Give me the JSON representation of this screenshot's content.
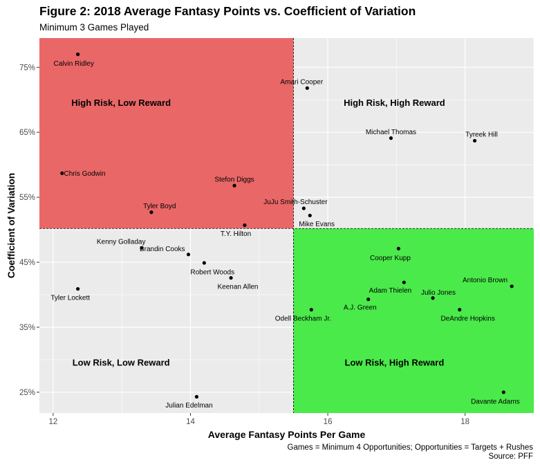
{
  "title": "Figure 2: 2018 Average Fantasy Points vs. Coefficient of Variation",
  "subtitle": "Minimum 3 Games Played",
  "caption_line1": "Games = Minimum 4 Opportunities; Opportunities = Targets + Rushes",
  "caption_line2": "Source: PFF",
  "colors": {
    "panel_bg": "#ebebeb",
    "grid": "#ffffff",
    "high_risk_low_reward": "#e96262",
    "low_risk_high_reward": "#44e944",
    "point": "#000000"
  },
  "chart_data": {
    "type": "scatter",
    "xlabel": "Average Fantasy Points Per Game",
    "ylabel": "Coefficient of Variation",
    "xlim": [
      11.8,
      19.0
    ],
    "ylim": [
      0.218,
      0.795
    ],
    "x_ticks": [
      12,
      14,
      16,
      18
    ],
    "x_tick_labels": [
      "12",
      "14",
      "16",
      "18"
    ],
    "y_ticks": [
      0.25,
      0.35,
      0.45,
      0.55,
      0.65,
      0.75
    ],
    "y_tick_labels": [
      "25%",
      "35%",
      "45%",
      "55%",
      "65%",
      "75%"
    ],
    "x_split": 15.5,
    "y_split": 0.502,
    "grid": true,
    "quadrants": [
      {
        "label": "High Risk, Low Reward",
        "x": 12.99,
        "y": 0.695
      },
      {
        "label": "High Risk, High Reward",
        "x": 16.97,
        "y": 0.695
      },
      {
        "label": "Low Risk, Low Reward",
        "x": 12.99,
        "y": 0.295
      },
      {
        "label": "Low Risk, High Reward",
        "x": 16.97,
        "y": 0.295
      }
    ],
    "points": [
      {
        "name": "Calvin Ridley",
        "x": 12.36,
        "y": 0.77,
        "lx": 12.3,
        "ly": 0.756
      },
      {
        "name": "Amari Cooper",
        "x": 15.7,
        "y": 0.718,
        "lx": 15.62,
        "ly": 0.728
      },
      {
        "name": "Michael Thomas",
        "x": 16.92,
        "y": 0.641,
        "lx": 16.92,
        "ly": 0.651
      },
      {
        "name": "Tyreek Hill",
        "x": 18.14,
        "y": 0.637,
        "lx": 18.24,
        "ly": 0.647
      },
      {
        "name": "Chris Godwin",
        "x": 12.13,
        "y": 0.587,
        "lx": 12.46,
        "ly": 0.587
      },
      {
        "name": "Stefon Diggs",
        "x": 14.64,
        "y": 0.568,
        "lx": 14.64,
        "ly": 0.578
      },
      {
        "name": "JuJu Smith-Schuster",
        "x": 15.65,
        "y": 0.533,
        "lx": 15.53,
        "ly": 0.543
      },
      {
        "name": "Tyler Boyd",
        "x": 13.43,
        "y": 0.527,
        "lx": 13.55,
        "ly": 0.537
      },
      {
        "name": "Mike Evans",
        "x": 15.74,
        "y": 0.522,
        "lx": 15.84,
        "ly": 0.509
      },
      {
        "name": "T.Y. Hilton",
        "x": 14.79,
        "y": 0.507,
        "lx": 14.66,
        "ly": 0.494
      },
      {
        "name": "Cooper Kupp",
        "x": 17.03,
        "y": 0.471,
        "lx": 16.91,
        "ly": 0.457
      },
      {
        "name": "Kenny Golladay",
        "x": 13.29,
        "y": 0.472,
        "lx": 12.99,
        "ly": 0.482
      },
      {
        "name": "Brandin Cooks",
        "x": 13.97,
        "y": 0.462,
        "lx": 13.59,
        "ly": 0.471
      },
      {
        "name": "Robert Woods",
        "x": 14.2,
        "y": 0.449,
        "lx": 14.32,
        "ly": 0.435
      },
      {
        "name": "Keenan Allen",
        "x": 14.59,
        "y": 0.426,
        "lx": 14.69,
        "ly": 0.413
      },
      {
        "name": "Antonio Brown",
        "x": 18.68,
        "y": 0.413,
        "lx": 18.29,
        "ly": 0.423
      },
      {
        "name": "Adam Thielen",
        "x": 17.11,
        "y": 0.419,
        "lx": 16.91,
        "ly": 0.407
      },
      {
        "name": "Tyler Lockett",
        "x": 12.36,
        "y": 0.409,
        "lx": 12.25,
        "ly": 0.396
      },
      {
        "name": "Julio Jones",
        "x": 17.53,
        "y": 0.395,
        "lx": 17.61,
        "ly": 0.404
      },
      {
        "name": "A.J. Green",
        "x": 16.59,
        "y": 0.393,
        "lx": 16.47,
        "ly": 0.381
      },
      {
        "name": "DeAndre Hopkins",
        "x": 17.92,
        "y": 0.377,
        "lx": 18.04,
        "ly": 0.364
      },
      {
        "name": "Odell Beckham Jr.",
        "x": 15.76,
        "y": 0.377,
        "lx": 15.64,
        "ly": 0.364
      },
      {
        "name": "Julian Edelman",
        "x": 14.09,
        "y": 0.243,
        "lx": 13.98,
        "ly": 0.23
      },
      {
        "name": "Davante Adams",
        "x": 18.56,
        "y": 0.25,
        "lx": 18.44,
        "ly": 0.236
      }
    ]
  }
}
